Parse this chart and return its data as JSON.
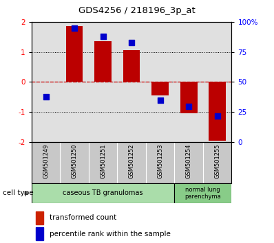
{
  "title": "GDS4256 / 218196_3p_at",
  "samples": [
    "GSM501249",
    "GSM501250",
    "GSM501251",
    "GSM501252",
    "GSM501253",
    "GSM501254",
    "GSM501255"
  ],
  "transformed_count": [
    0.02,
    1.85,
    1.35,
    1.05,
    -0.45,
    -1.05,
    -1.95
  ],
  "percentile_rank": [
    38,
    95,
    88,
    83,
    35,
    30,
    22
  ],
  "ylim_left": [
    -2,
    2
  ],
  "ylim_right": [
    0,
    100
  ],
  "yticks_left": [
    -2,
    -1,
    0,
    1,
    2
  ],
  "yticks_right": [
    0,
    25,
    50,
    75,
    100
  ],
  "ytick_labels_right": [
    "0",
    "25",
    "50",
    "75",
    "100%"
  ],
  "ytick_labels_left": [
    "-2",
    "-1",
    "0",
    "1",
    "2"
  ],
  "bar_color": "#bb0000",
  "dot_color": "#0000cc",
  "cell_type_1_label": "caseous TB granulomas",
  "cell_type_1_color": "#aaddaa",
  "cell_type_1_count": 5,
  "cell_type_2_label": "normal lung\nparenchyma",
  "cell_type_2_color": "#88cc88",
  "cell_type_2_count": 2,
  "legend_bar_label": "transformed count",
  "legend_dot_label": "percentile rank within the sample",
  "bar_color_legend": "#cc2200",
  "dot_color_legend": "#0000cc",
  "background_color": "#ffffff",
  "plot_bg_color": "#e0e0e0",
  "label_bg_color": "#c8c8c8"
}
